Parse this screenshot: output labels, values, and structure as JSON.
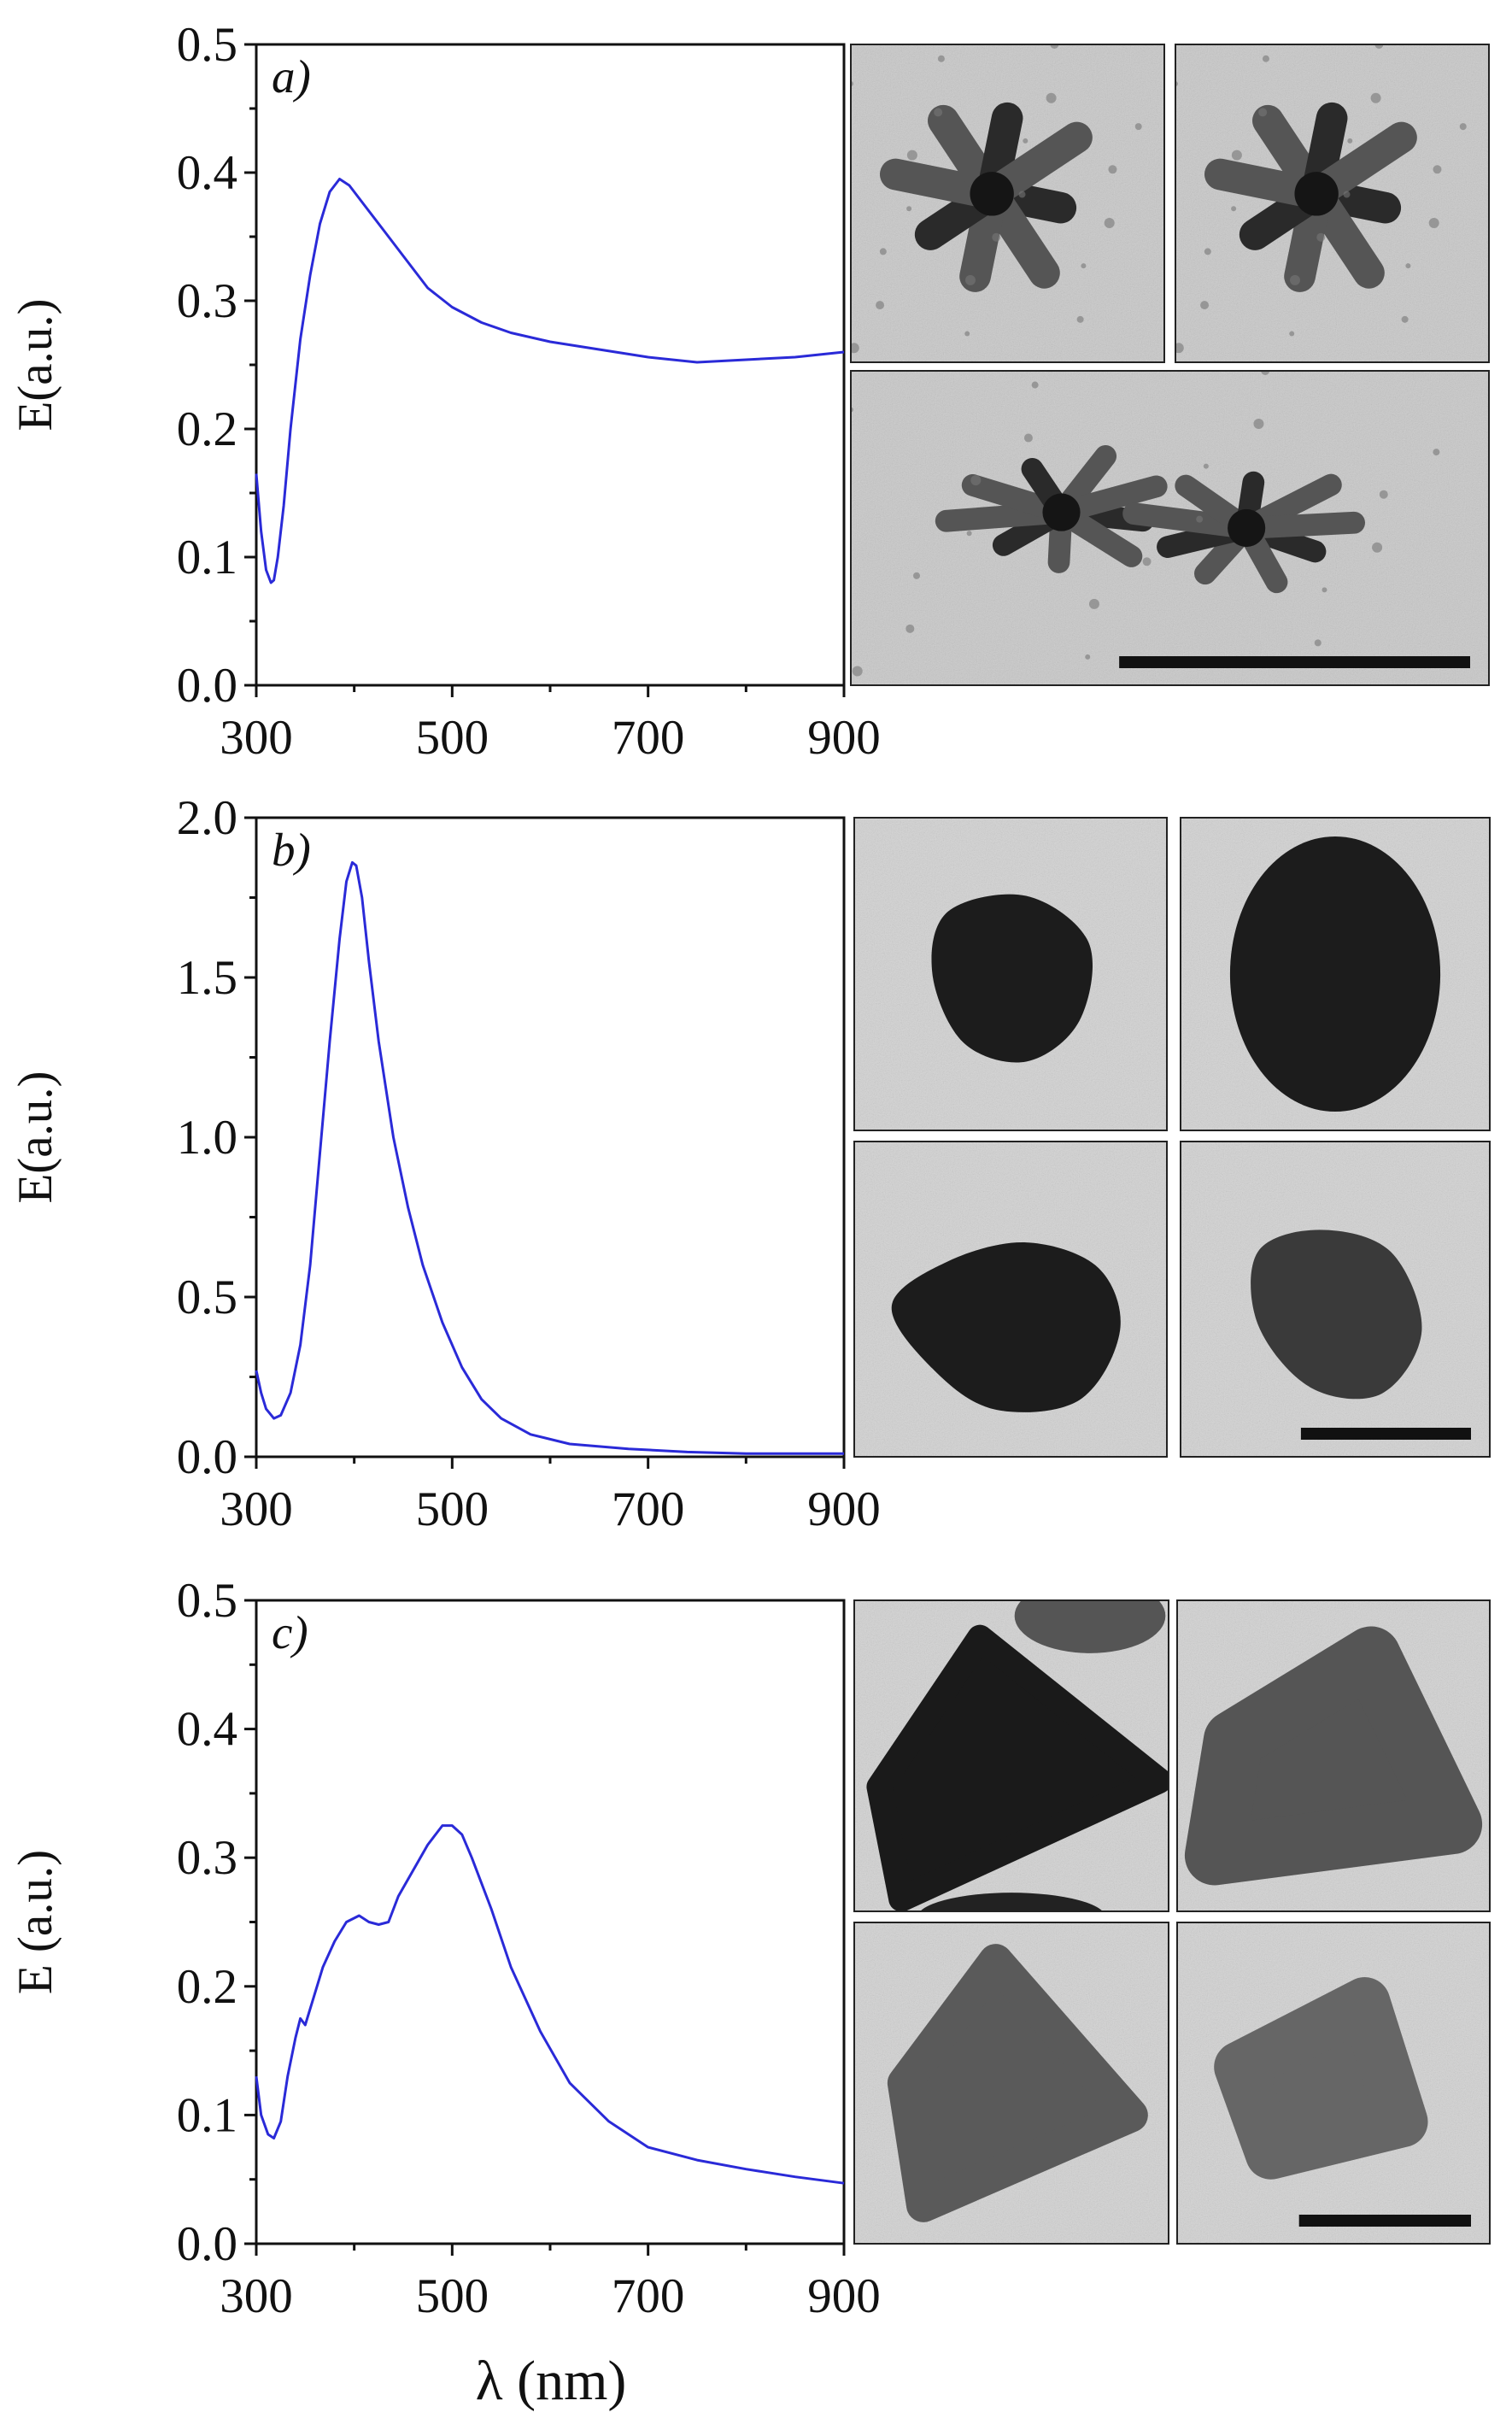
{
  "colors": {
    "curve": "#2a2ad8",
    "axis": "#111111",
    "tem_background": "#d3d3d3",
    "particle": "#1c1c1c"
  },
  "x_axis_title": "λ (nm)",
  "chart_data": [
    {
      "type": "line",
      "panel_label": "a)",
      "ylabel": "E(a.u.)",
      "xlim": [
        300,
        900
      ],
      "ylim": [
        0.0,
        0.5
      ],
      "xticks": [
        "300",
        "500",
        "700",
        "900"
      ],
      "yticks": [
        "0.0",
        "0.1",
        "0.2",
        "0.3",
        "0.4",
        "0.5"
      ],
      "grid": false,
      "series": [
        {
          "x": [
            300,
            305,
            310,
            315,
            318,
            322,
            328,
            335,
            345,
            355,
            365,
            375,
            385,
            395,
            410,
            430,
            450,
            475,
            500,
            530,
            560,
            600,
            650,
            700,
            750,
            800,
            850,
            900
          ],
          "y": [
            0.165,
            0.12,
            0.09,
            0.08,
            0.082,
            0.1,
            0.14,
            0.2,
            0.27,
            0.32,
            0.36,
            0.385,
            0.395,
            0.39,
            0.375,
            0.355,
            0.335,
            0.31,
            0.295,
            0.283,
            0.275,
            0.268,
            0.262,
            0.256,
            0.252,
            0.254,
            0.256,
            0.26
          ]
        }
      ],
      "tem_images": [
        {
          "shape": "branched",
          "scale_bar": false
        },
        {
          "shape": "branched",
          "scale_bar": false
        },
        {
          "shape": "branched-large",
          "scale_bar": true
        }
      ]
    },
    {
      "type": "line",
      "panel_label": "b)",
      "ylabel": "E(a.u.)",
      "xlim": [
        300,
        900
      ],
      "ylim": [
        0.0,
        2.0
      ],
      "xticks": [
        "300",
        "500",
        "700",
        "900"
      ],
      "yticks": [
        "0.0",
        "0.5",
        "1.0",
        "1.5",
        "2.0"
      ],
      "grid": false,
      "series": [
        {
          "x": [
            300,
            305,
            310,
            318,
            325,
            335,
            345,
            355,
            365,
            375,
            385,
            392,
            398,
            402,
            408,
            415,
            425,
            440,
            455,
            470,
            490,
            510,
            530,
            550,
            580,
            620,
            680,
            740,
            800,
            850,
            900
          ],
          "y": [
            0.27,
            0.2,
            0.15,
            0.12,
            0.13,
            0.2,
            0.35,
            0.6,
            0.95,
            1.3,
            1.62,
            1.8,
            1.86,
            1.85,
            1.75,
            1.55,
            1.3,
            1.0,
            0.78,
            0.6,
            0.42,
            0.28,
            0.18,
            0.12,
            0.07,
            0.04,
            0.025,
            0.015,
            0.01,
            0.01,
            0.01
          ]
        }
      ],
      "tem_images": [
        {
          "shape": "round",
          "scale_bar": false
        },
        {
          "shape": "oval",
          "scale_bar": false
        },
        {
          "shape": "irregular",
          "scale_bar": false
        },
        {
          "shape": "round-small",
          "scale_bar": true
        }
      ]
    },
    {
      "type": "line",
      "panel_label": "c)",
      "ylabel": "E (a.u.)",
      "xlim": [
        300,
        900
      ],
      "ylim": [
        0.0,
        0.5
      ],
      "xticks": [
        "300",
        "500",
        "700",
        "900"
      ],
      "yticks": [
        "0.0",
        "0.1",
        "0.2",
        "0.3",
        "0.4",
        "0.5"
      ],
      "grid": false,
      "series": [
        {
          "x": [
            300,
            305,
            312,
            318,
            325,
            332,
            340,
            345,
            350,
            358,
            368,
            380,
            392,
            405,
            415,
            425,
            435,
            445,
            460,
            475,
            490,
            500,
            510,
            520,
            540,
            560,
            590,
            620,
            660,
            700,
            750,
            800,
            850,
            900
          ],
          "y": [
            0.13,
            0.1,
            0.085,
            0.082,
            0.095,
            0.13,
            0.16,
            0.175,
            0.17,
            0.19,
            0.215,
            0.235,
            0.25,
            0.255,
            0.25,
            0.248,
            0.25,
            0.27,
            0.29,
            0.31,
            0.325,
            0.325,
            0.318,
            0.3,
            0.26,
            0.215,
            0.165,
            0.125,
            0.095,
            0.075,
            0.065,
            0.058,
            0.052,
            0.047
          ]
        }
      ],
      "tem_images": [
        {
          "shape": "triangle-dark",
          "scale_bar": false
        },
        {
          "shape": "rounded-triangle",
          "scale_bar": false
        },
        {
          "shape": "triangle",
          "scale_bar": false
        },
        {
          "shape": "rounded-triangle-small",
          "scale_bar": true
        }
      ]
    }
  ]
}
